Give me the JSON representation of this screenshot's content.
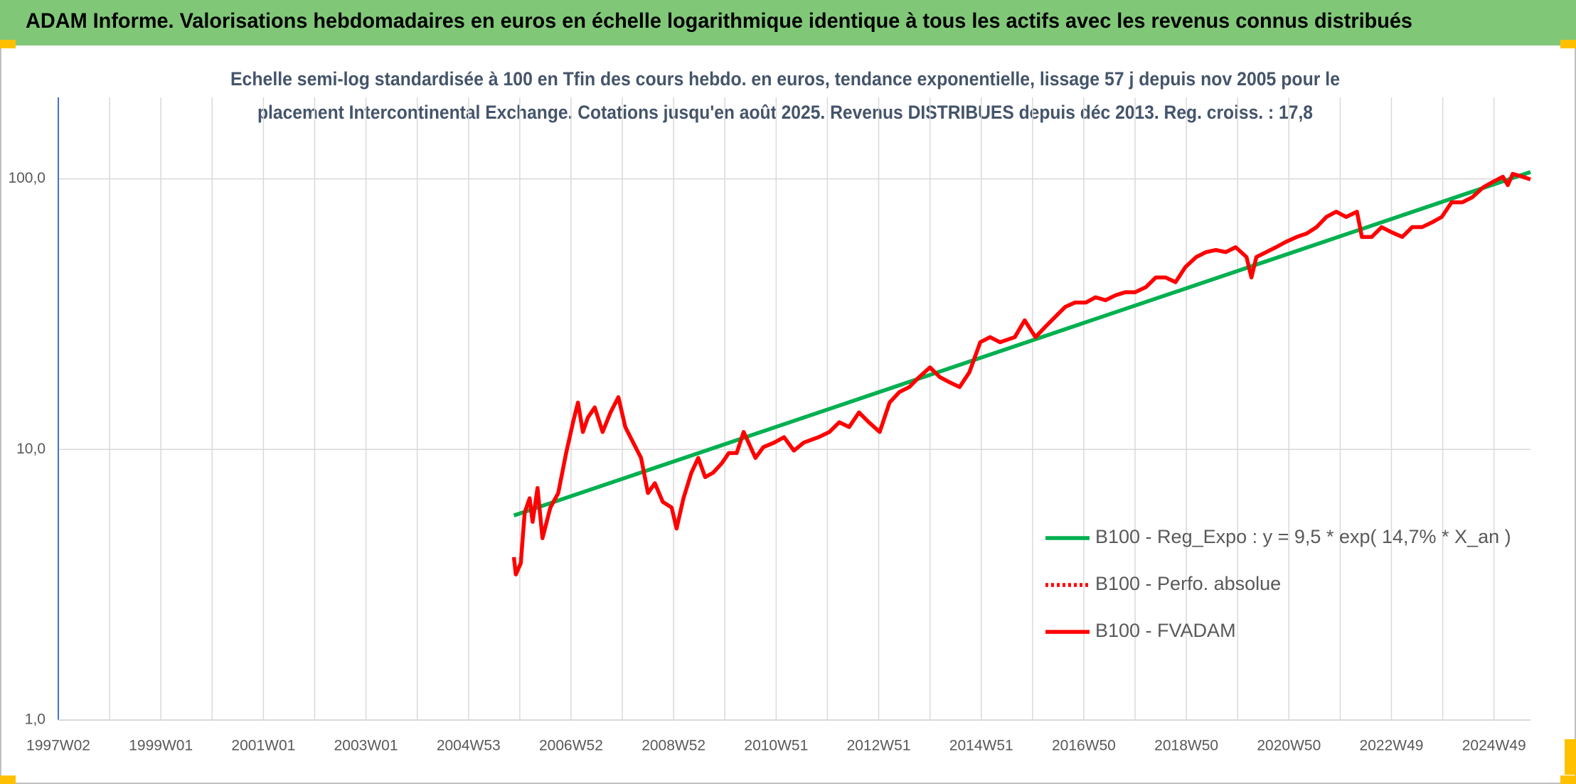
{
  "chart_data": {
    "type": "line",
    "title": "ADAM Informe. Valorisations hebdomadaires en euros en échelle logarithmique identique à tous les actifs avec les revenus connus distribués",
    "subtitle": [
      "Echelle semi-log standardisée à 100 en Tfin des cours hebdo. en euros, tendance exponentielle, lissage 57 j depuis nov 2005 pour le",
      "placement Intercontinental Exchange. Cotations jusqu'en août 2025. Revenus DISTRIBUES depuis déc 2013. Reg. croiss. : 17,8"
    ],
    "ylog": true,
    "ylim": [
      1,
      200
    ],
    "yticks": [
      {
        "value": 1,
        "label": "1,0"
      },
      {
        "value": 10,
        "label": "10,0"
      },
      {
        "value": 100,
        "label": "100,0"
      }
    ],
    "xlim": [
      0,
      1493
    ],
    "xticks": [
      {
        "value": 0,
        "label": "1997W02"
      },
      {
        "value": 104,
        "label": "1999W01"
      },
      {
        "value": 208,
        "label": "2001W01"
      },
      {
        "value": 312,
        "label": "2003W01"
      },
      {
        "value": 416,
        "label": "2004W53"
      },
      {
        "value": 520,
        "label": "2006W52"
      },
      {
        "value": 624,
        "label": "2008W52"
      },
      {
        "value": 728,
        "label": "2010W51"
      },
      {
        "value": 832,
        "label": "2012W51"
      },
      {
        "value": 936,
        "label": "2014W51"
      },
      {
        "value": 1040,
        "label": "2016W50"
      },
      {
        "value": 1144,
        "label": "2018W50"
      },
      {
        "value": 1248,
        "label": "2020W50"
      },
      {
        "value": 1352,
        "label": "2022W49"
      },
      {
        "value": 1456,
        "label": "2024W49"
      }
    ],
    "xminorticks": [
      52,
      156,
      260,
      364,
      468,
      572,
      676,
      780,
      884,
      988,
      1092,
      1196,
      1300,
      1404
    ],
    "grid": true,
    "legend": "right",
    "series": [
      {
        "name": "B100 - Reg_Expo : y = 9,5 * exp( 14,7% *  X_an )",
        "color": "#00b050",
        "style": "solid",
        "x": [
          462,
          1493
        ],
        "values": [
          5.7,
          106
        ]
      },
      {
        "name": "B100 - Perfo. absolue",
        "color": "#ff0000",
        "style": "dotted",
        "x": [],
        "values": []
      },
      {
        "name": "B100 - FVADAM",
        "color": "#ff0000",
        "style": "solid",
        "x": [
          462,
          464,
          469,
          473,
          478,
          481,
          486,
          491,
          499,
          507,
          515,
          522,
          527,
          532,
          537,
          544,
          552,
          560,
          568,
          575,
          583,
          591,
          598,
          605,
          613,
          622,
          627,
          634,
          642,
          649,
          656,
          664,
          673,
          680,
          688,
          695,
          700,
          707,
          715,
          726,
          736,
          746,
          756,
          771,
          782,
          792,
          802,
          812,
          822,
          833,
          843,
          853,
          863,
          873,
          884,
          894,
          904,
          914,
          924,
          935,
          945,
          955,
          970,
          980,
          991,
          1001,
          1011,
          1021,
          1031,
          1042,
          1052,
          1062,
          1072,
          1082,
          1092,
          1103,
          1113,
          1123,
          1133,
          1143,
          1154,
          1164,
          1174,
          1184,
          1194,
          1205,
          1210,
          1215,
          1225,
          1235,
          1245,
          1256,
          1266,
          1276,
          1286,
          1296,
          1306,
          1317,
          1322,
          1332,
          1342,
          1352,
          1363,
          1373,
          1383,
          1393,
          1403,
          1413,
          1424,
          1434,
          1445,
          1455,
          1465,
          1470,
          1475,
          1485,
          1493
        ],
        "values": [
          4.0,
          3.45,
          3.8,
          5.85,
          6.6,
          5.4,
          7.2,
          4.7,
          6.1,
          6.9,
          9.7,
          12.6,
          14.9,
          11.6,
          13.1,
          14.3,
          11.6,
          13.7,
          15.6,
          12.1,
          10.6,
          9.3,
          6.9,
          7.5,
          6.4,
          6.1,
          5.1,
          6.6,
          8.2,
          9.3,
          7.9,
          8.2,
          8.9,
          9.7,
          9.7,
          11.6,
          10.6,
          9.3,
          10.2,
          10.6,
          11.1,
          9.9,
          10.6,
          11.1,
          11.6,
          12.6,
          12.1,
          13.7,
          12.6,
          11.6,
          14.9,
          16.3,
          17.0,
          18.5,
          20.1,
          18.5,
          17.7,
          17.0,
          19.3,
          24.9,
          26.0,
          24.9,
          26.0,
          30.0,
          26.0,
          28.4,
          30.9,
          33.6,
          34.9,
          34.9,
          36.5,
          35.6,
          37.1,
          38.1,
          38.1,
          39.8,
          43.2,
          43.2,
          41.5,
          47.2,
          51.4,
          53.6,
          54.6,
          53.6,
          55.9,
          51.4,
          43.2,
          51.4,
          53.6,
          55.9,
          58.5,
          61.0,
          62.8,
          66.3,
          72.3,
          75.6,
          72.3,
          75.6,
          61.0,
          61.0,
          66.3,
          63.5,
          61.0,
          66.3,
          66.3,
          69.0,
          72.3,
          81.9,
          81.9,
          85.5,
          93.0,
          97.5,
          101.8,
          94.8,
          104.3,
          101.8,
          99.5
        ]
      }
    ]
  }
}
